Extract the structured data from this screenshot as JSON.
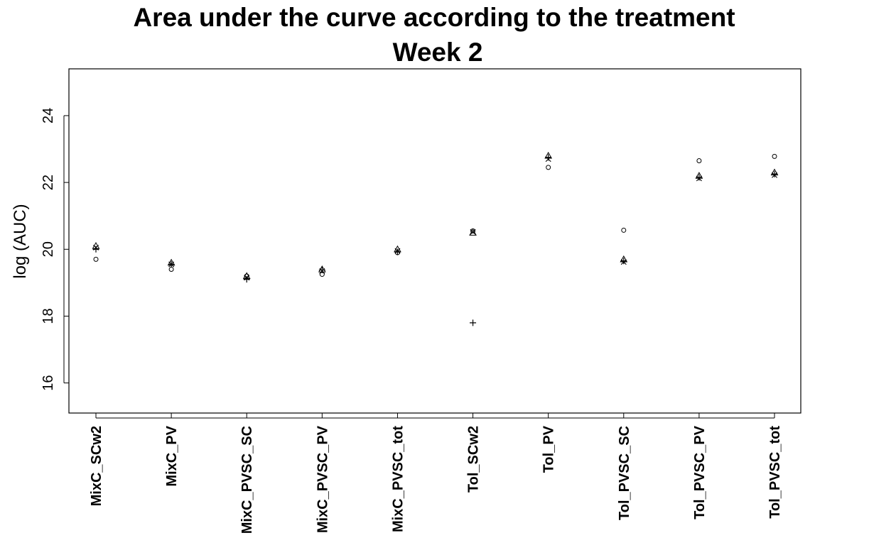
{
  "chart_data": {
    "type": "scatter",
    "title": "Area under the curve according to the treatment",
    "subtitle": "Week 2",
    "xlabel": "",
    "ylabel": "log (AUC)",
    "ylim": [
      15.1,
      25.4
    ],
    "yticks": [
      16,
      18,
      20,
      22,
      24
    ],
    "ytick_labels": [
      "16",
      "18",
      "20",
      "22",
      "24"
    ],
    "categories": [
      "MixC_SCw2",
      "MixC_PV",
      "MixC_PVSC_SC",
      "MixC_PVSC_PV",
      "MixC_PVSC_tot",
      "Tol_SCw2",
      "Tol_PV",
      "Tol_PVSC_SC",
      "Tol_PVSC_PV",
      "Tol_PVSC_tot"
    ],
    "grid": false,
    "series": [
      {
        "marker": "circle",
        "values": [
          19.7,
          19.4,
          19.2,
          19.25,
          19.9,
          20.55,
          22.45,
          20.57,
          22.65,
          22.78
        ]
      },
      {
        "marker": "triangle",
        "values": [
          20.1,
          19.6,
          19.2,
          19.4,
          20.0,
          20.5,
          22.8,
          19.7,
          22.2,
          22.3
        ]
      },
      {
        "marker": "plus",
        "values": [
          20.0,
          19.55,
          19.1,
          19.38,
          19.92,
          17.8,
          22.75,
          19.65,
          22.15,
          22.25
        ]
      },
      {
        "marker": "cross",
        "values": [
          20.05,
          19.55,
          19.15,
          19.35,
          19.95,
          20.52,
          22.7,
          19.62,
          22.12,
          22.22
        ]
      }
    ]
  }
}
